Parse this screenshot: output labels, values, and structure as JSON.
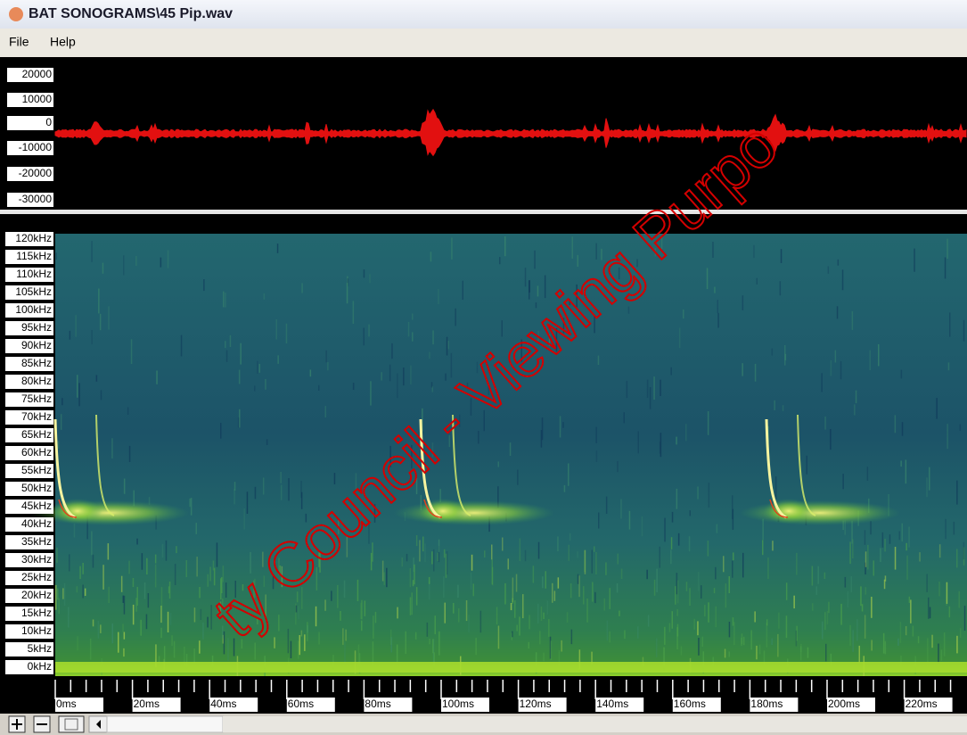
{
  "window": {
    "title": "BAT SONOGRAMS\\45 Pip.wav"
  },
  "menu": [
    "File",
    "Help"
  ],
  "waveform": {
    "amplitude_labels": [
      "20000",
      "10000",
      "0",
      "-10000",
      "-20000",
      "-30000"
    ]
  },
  "spectrogram": {
    "frequency_labels": [
      "120kHz",
      "115kHz",
      "110kHz",
      "105kHz",
      "100kHz",
      "95kHz",
      "90kHz",
      "85kHz",
      "80kHz",
      "75kHz",
      "70kHz",
      "65kHz",
      "60kHz",
      "55kHz",
      "50kHz",
      "45kHz",
      "40kHz",
      "35kHz",
      "30kHz",
      "25kHz",
      "20kHz",
      "15kHz",
      "10kHz",
      "5kHz",
      "0kHz"
    ],
    "time_labels": [
      "0ms",
      "20ms",
      "40ms",
      "60ms",
      "80ms",
      "100ms",
      "120ms",
      "140ms",
      "160ms",
      "180ms",
      "200ms",
      "220ms"
    ]
  },
  "watermark": "ty Council - Viewing Purpo"
}
